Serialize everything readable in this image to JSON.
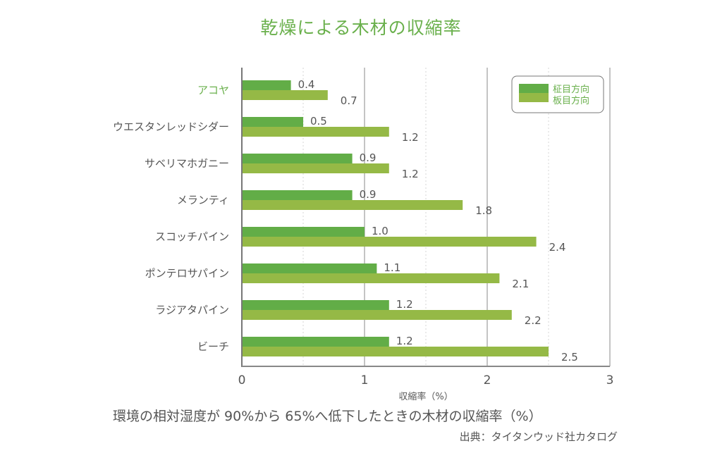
{
  "chart_data": {
    "type": "bar",
    "orientation": "horizontal",
    "title": "乾燥による木材の収縮率",
    "categories": [
      "アコヤ",
      "ウエスタンレッドシダー",
      "サベリマホガニー",
      "メランティ",
      "スコッチパイン",
      "ポンテロサパイン",
      "ラジアタパイン",
      "ビーチ"
    ],
    "series": [
      {
        "name": "柾目方向",
        "color": "#62ad47",
        "values": [
          0.4,
          0.5,
          0.9,
          0.9,
          1.0,
          1.1,
          1.2,
          1.2
        ]
      },
      {
        "name": "板目方向",
        "color": "#95b946",
        "values": [
          0.7,
          1.2,
          1.2,
          1.8,
          2.4,
          2.1,
          2.2,
          2.5
        ]
      }
    ],
    "value_labels": [
      [
        "0.4",
        "0.5",
        "0.9",
        "0.9",
        "1.0",
        "1.1",
        "1.2",
        "1.2"
      ],
      [
        "0.7",
        "1.2",
        "1.2",
        "1.8",
        "2.4",
        "2.1",
        "2.2",
        "2.5"
      ]
    ],
    "xlabel": "収縮率（%）",
    "ylabel": "",
    "xlim": [
      0,
      3
    ],
    "xticks": [
      "0",
      "1",
      "2",
      "3"
    ],
    "grid": "vertical (solid at integers, dotted at halves)",
    "legend_position": "top-right",
    "highlight_category_color": "#6ab04c"
  },
  "caption": "環境の相対湿度が 90%から 65%へ低下したときの木材の収縮率（%）",
  "source": "出典：タイタンウッド社カタログ"
}
